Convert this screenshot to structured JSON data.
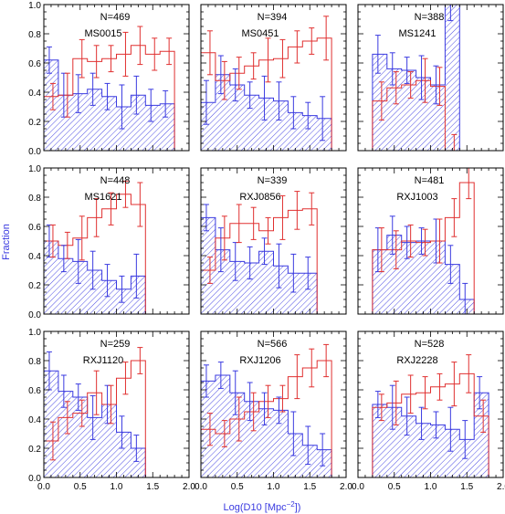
{
  "colors": {
    "blue": "#3a3ae0",
    "red": "#e03030",
    "axis": "#000000"
  },
  "axes": {
    "xlabel": "Log(D10 [Mpc",
    "xlabel_sup": "−2",
    "xlabel_tail": "])",
    "ylabel": "Fraction",
    "xticks": [
      "0.0",
      "0.5",
      "1.0",
      "1.5",
      "2.0"
    ],
    "yticks": [
      "0.0",
      "0.2",
      "0.4",
      "0.6",
      "0.8",
      "1.0"
    ]
  },
  "chart_data": {
    "type": "bar",
    "xlim": [
      0,
      2
    ],
    "ylim": [
      0,
      1
    ],
    "bin_edges": [
      0,
      0.2,
      0.4,
      0.6,
      0.8,
      1.0,
      1.2,
      1.4,
      1.6,
      1.8,
      2.0
    ],
    "series_legend": [
      "blue hatched histogram",
      "red step histogram"
    ],
    "panels": [
      {
        "count": "N=469",
        "name": "MS0015",
        "first_bin": 0,
        "blue": [
          0.62,
          0.38,
          0.39,
          0.42,
          0.37,
          0.3,
          0.38,
          0.31,
          0.32
        ],
        "red": [
          0.37,
          0.38,
          0.63,
          0.61,
          0.63,
          0.66,
          0.72,
          0.66,
          0.68
        ]
      },
      {
        "count": "N=394",
        "name": "MS0451",
        "first_bin": 0,
        "blue": [
          0.33,
          0.52,
          0.45,
          0.38,
          0.36,
          0.34,
          0.26,
          0.24,
          0.22
        ],
        "red": [
          0.67,
          0.48,
          0.53,
          0.58,
          0.62,
          0.63,
          0.71,
          0.75,
          0.77
        ]
      },
      {
        "count": "N=388",
        "name": "MS1241",
        "first_bin": 1,
        "blue": [
          0.66,
          0.56,
          0.55,
          0.5,
          0.45,
          1.0
        ],
        "red": [
          0.34,
          0.43,
          0.45,
          0.48,
          0.44,
          0.0
        ]
      },
      {
        "count": "N=448",
        "name": "MS1621",
        "first_bin": 0,
        "blue": [
          0.5,
          0.38,
          0.36,
          0.3,
          0.23,
          0.17,
          0.26
        ],
        "red": [
          0.5,
          0.47,
          0.52,
          0.66,
          0.72,
          0.82,
          0.75
        ]
      },
      {
        "count": "N=339",
        "name": "RXJ0856",
        "first_bin": 0,
        "blue": [
          0.66,
          0.44,
          0.36,
          0.35,
          0.43,
          0.33,
          0.28,
          0.28
        ],
        "red": [
          0.3,
          0.52,
          0.62,
          0.62,
          0.57,
          0.66,
          0.71,
          0.72
        ]
      },
      {
        "count": "N=481",
        "name": "RXJ1003",
        "first_bin": 1,
        "blue": [
          0.44,
          0.54,
          0.49,
          0.5,
          0.5,
          0.34,
          0.1
        ],
        "red": [
          0.44,
          0.44,
          0.5,
          0.49,
          0.5,
          0.66,
          0.9
        ]
      },
      {
        "count": "N=259",
        "name": "RXJ1120",
        "first_bin": 0,
        "blue": [
          0.73,
          0.59,
          0.55,
          0.41,
          0.5,
          0.31,
          0.2
        ],
        "red": [
          0.25,
          0.41,
          0.44,
          0.58,
          0.5,
          0.68,
          0.8
        ]
      },
      {
        "count": "N=566",
        "name": "RXJ1206",
        "first_bin": 0,
        "blue": [
          0.66,
          0.7,
          0.58,
          0.52,
          0.47,
          0.46,
          0.3,
          0.22,
          0.19
        ],
        "red": [
          0.33,
          0.3,
          0.4,
          0.45,
          0.52,
          0.54,
          0.69,
          0.75,
          0.8
        ]
      },
      {
        "count": "N=528",
        "name": "RXJ2228",
        "first_bin": 1,
        "blue": [
          0.5,
          0.48,
          0.42,
          0.37,
          0.36,
          0.33,
          0.26,
          0.58
        ],
        "red": [
          0.48,
          0.51,
          0.57,
          0.58,
          0.62,
          0.64,
          0.71,
          0.42
        ]
      }
    ]
  }
}
